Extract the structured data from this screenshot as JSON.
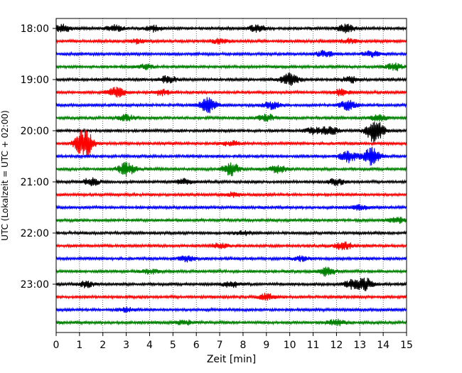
{
  "chart_data": {
    "type": "line",
    "title": "",
    "xlabel": "Zeit  [min]",
    "ylabel": "UTC (Lokalzeit = UTC + 02:00)",
    "xlim": [
      0,
      15
    ],
    "x_ticks": [
      "0",
      "1",
      "2",
      "3",
      "4",
      "5",
      "6",
      "7",
      "8",
      "9",
      "10",
      "11",
      "12",
      "13",
      "14",
      "15"
    ],
    "y_ticks": [
      "18:00",
      "19:00",
      "20:00",
      "21:00",
      "22:00",
      "23:00"
    ],
    "grid": "vertical dotted",
    "legend": "none",
    "trace_interval_minutes": 15,
    "start_time": "18:00",
    "trace_colors": [
      "#000000",
      "#ff0000",
      "#0000ff",
      "#008000"
    ],
    "traces": [
      {
        "start": "18:00",
        "color": "#000000",
        "events": [
          [
            0.3,
            5
          ],
          [
            2.5,
            4
          ],
          [
            4.2,
            4
          ],
          [
            8.6,
            5
          ],
          [
            12.4,
            6
          ]
        ]
      },
      {
        "start": "18:15",
        "color": "#ff0000",
        "events": [
          [
            3.5,
            3
          ],
          [
            7.0,
            3
          ],
          [
            12.5,
            3
          ]
        ]
      },
      {
        "start": "18:30",
        "color": "#0000ff",
        "events": [
          [
            11.5,
            4
          ],
          [
            13.5,
            4
          ]
        ]
      },
      {
        "start": "18:45",
        "color": "#008000",
        "events": [
          [
            3.8,
            3
          ],
          [
            14.5,
            5
          ]
        ]
      },
      {
        "start": "19:00",
        "color": "#000000",
        "events": [
          [
            4.8,
            5
          ],
          [
            10.0,
            9
          ],
          [
            12.6,
            4
          ]
        ]
      },
      {
        "start": "19:15",
        "color": "#ff0000",
        "events": [
          [
            2.6,
            7
          ],
          [
            4.5,
            4
          ],
          [
            12.2,
            4
          ]
        ]
      },
      {
        "start": "19:30",
        "color": "#0000ff",
        "events": [
          [
            6.5,
            10
          ],
          [
            9.2,
            5
          ],
          [
            12.5,
            7
          ]
        ]
      },
      {
        "start": "19:45",
        "color": "#008000",
        "events": [
          [
            3.0,
            4
          ],
          [
            9.0,
            5
          ],
          [
            13.8,
            4
          ]
        ]
      },
      {
        "start": "20:00",
        "color": "#000000",
        "events": [
          [
            11.7,
            6
          ],
          [
            13.65,
            18
          ],
          [
            11.0,
            4
          ]
        ]
      },
      {
        "start": "20:15",
        "color": "#ff0000",
        "events": [
          [
            1.2,
            22
          ],
          [
            7.5,
            3
          ]
        ]
      },
      {
        "start": "20:30",
        "color": "#0000ff",
        "events": [
          [
            12.5,
            8
          ],
          [
            13.5,
            12
          ]
        ]
      },
      {
        "start": "20:45",
        "color": "#008000",
        "events": [
          [
            3.0,
            9
          ],
          [
            7.5,
            9
          ],
          [
            9.5,
            5
          ]
        ]
      },
      {
        "start": "21:00",
        "color": "#000000",
        "events": [
          [
            1.5,
            5
          ],
          [
            5.5,
            4
          ],
          [
            12.0,
            4
          ]
        ]
      },
      {
        "start": "21:15",
        "color": "#ff0000",
        "events": [
          [
            7.5,
            3
          ]
        ]
      },
      {
        "start": "21:30",
        "color": "#0000ff",
        "events": [
          [
            13.0,
            3
          ]
        ]
      },
      {
        "start": "21:45",
        "color": "#008000",
        "events": [
          [
            14.6,
            4
          ]
        ]
      },
      {
        "start": "22:00",
        "color": "#000000",
        "events": [
          [
            8.0,
            3
          ]
        ]
      },
      {
        "start": "22:15",
        "color": "#ff0000",
        "events": [
          [
            12.3,
            6
          ],
          [
            7.0,
            3
          ]
        ]
      },
      {
        "start": "22:30",
        "color": "#0000ff",
        "events": [
          [
            5.6,
            4
          ],
          [
            10.5,
            3
          ]
        ]
      },
      {
        "start": "22:45",
        "color": "#008000",
        "events": [
          [
            11.6,
            6
          ],
          [
            4.0,
            3
          ]
        ]
      },
      {
        "start": "23:00",
        "color": "#000000",
        "events": [
          [
            1.3,
            4
          ],
          [
            7.5,
            4
          ],
          [
            12.6,
            5
          ],
          [
            13.2,
            8
          ]
        ]
      },
      {
        "start": "23:15",
        "color": "#ff0000",
        "events": [
          [
            9.0,
            4
          ]
        ]
      },
      {
        "start": "23:30",
        "color": "#0000ff",
        "events": [
          [
            3.0,
            3
          ]
        ]
      },
      {
        "start": "23:45",
        "color": "#008000",
        "events": [
          [
            5.5,
            3
          ],
          [
            12.0,
            4
          ]
        ]
      }
    ]
  }
}
